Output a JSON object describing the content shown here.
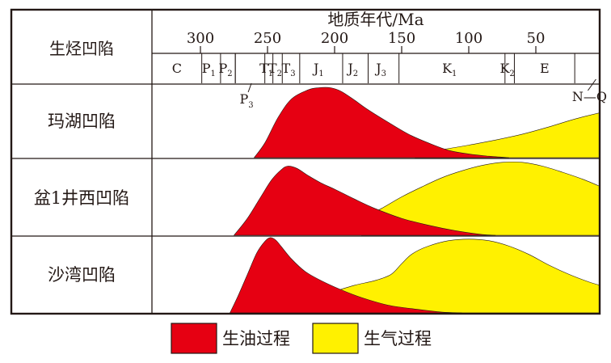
{
  "chart_data": {
    "type": "area",
    "header_label": "生烃凹陷",
    "axis_title": "地质年代/Ma",
    "axis": {
      "min": 0,
      "max": 340,
      "reversed": true,
      "ticks": [
        300,
        250,
        200,
        150,
        100,
        50
      ]
    },
    "periods": [
      {
        "name": "C",
        "sub": "",
        "from": 340,
        "to": 299
      },
      {
        "name": "P",
        "sub": "1",
        "from": 299,
        "to": 285
      },
      {
        "name": "P",
        "sub": "2",
        "from": 285,
        "to": 274
      },
      {
        "name": "T",
        "sub": "1",
        "from": 252,
        "to": 246
      },
      {
        "name": "T",
        "sub": "2",
        "from": 246,
        "to": 239
      },
      {
        "name": "T",
        "sub": "3",
        "from": 239,
        "to": 226
      },
      {
        "name": "J",
        "sub": "1",
        "from": 226,
        "to": 194
      },
      {
        "name": "J",
        "sub": "2",
        "from": 194,
        "to": 175
      },
      {
        "name": "J",
        "sub": "3",
        "from": 175,
        "to": 152
      },
      {
        "name": "K",
        "sub": "1",
        "from": 152,
        "to": 73
      },
      {
        "name": "K",
        "sub": "2",
        "from": 73,
        "to": 66
      },
      {
        "name": "E",
        "sub": "",
        "from": 66,
        "to": 21
      },
      {
        "name": "",
        "sub": "",
        "from": 21,
        "to": 0
      }
    ],
    "period_callouts": [
      {
        "name": "P",
        "sub": "3",
        "at": 262
      },
      {
        "name": "N—Q",
        "sub": "",
        "at": 10
      }
    ],
    "rows": [
      "玛湖凹陷",
      "盆1井西凹陷",
      "沙湾凹陷"
    ],
    "series_names": [
      "生油过程",
      "生气过程"
    ],
    "colors": {
      "oil": "#e60012",
      "gas": "#fff100",
      "ink": "#231815"
    },
    "series": [
      {
        "row": "玛湖凹陷",
        "oil": {
          "x": [
            260,
            252,
            242,
            232,
            220,
            212,
            203,
            195,
            185,
            175,
            160,
            145,
            130,
            115,
            100,
            85,
            70
          ],
          "y": [
            0,
            0.2,
            0.55,
            0.8,
            0.92,
            0.95,
            0.95,
            0.9,
            0.78,
            0.65,
            0.48,
            0.32,
            0.2,
            0.1,
            0.05,
            0.02,
            0
          ]
        },
        "gas": {
          "x": [
            140,
            120,
            100,
            80,
            60,
            40,
            20,
            0
          ],
          "y": [
            0.06,
            0.11,
            0.17,
            0.24,
            0.32,
            0.42,
            0.53,
            0.62
          ]
        }
      },
      {
        "row": "盆1井西凹陷",
        "oil": {
          "x": [
            275,
            265,
            255,
            247,
            240,
            235,
            228,
            220,
            210,
            200,
            185,
            170,
            150,
            130,
            110,
            90,
            80
          ],
          "y": [
            0,
            0.22,
            0.5,
            0.72,
            0.85,
            0.9,
            0.87,
            0.78,
            0.68,
            0.6,
            0.47,
            0.35,
            0.22,
            0.13,
            0.06,
            0.01,
            0
          ]
        },
        "gas": {
          "x": [
            180,
            165,
            150,
            135,
            120,
            105,
            90,
            75,
            60,
            45,
            30,
            15,
            0
          ],
          "y": [
            0.22,
            0.35,
            0.5,
            0.63,
            0.75,
            0.84,
            0.91,
            0.95,
            0.95,
            0.9,
            0.82,
            0.73,
            0.62
          ]
        }
      },
      {
        "row": "沙湾凹陷",
        "oil": {
          "x": [
            278,
            272,
            265,
            258,
            252,
            248,
            244,
            240,
            232,
            222,
            210,
            195,
            180,
            160,
            140,
            120,
            105
          ],
          "y": [
            0,
            0.22,
            0.5,
            0.78,
            0.93,
            0.98,
            0.95,
            0.87,
            0.7,
            0.54,
            0.42,
            0.3,
            0.2,
            0.1,
            0.05,
            0.01,
            0
          ]
        },
        "gas": {
          "x": [
            200,
            185,
            170,
            158,
            150,
            142,
            130,
            115,
            100,
            85,
            70,
            55,
            40,
            25,
            10,
            0
          ],
          "y": [
            0.28,
            0.36,
            0.42,
            0.5,
            0.64,
            0.77,
            0.87,
            0.94,
            0.96,
            0.94,
            0.87,
            0.76,
            0.62,
            0.5,
            0.4,
            0.35
          ]
        }
      }
    ]
  }
}
